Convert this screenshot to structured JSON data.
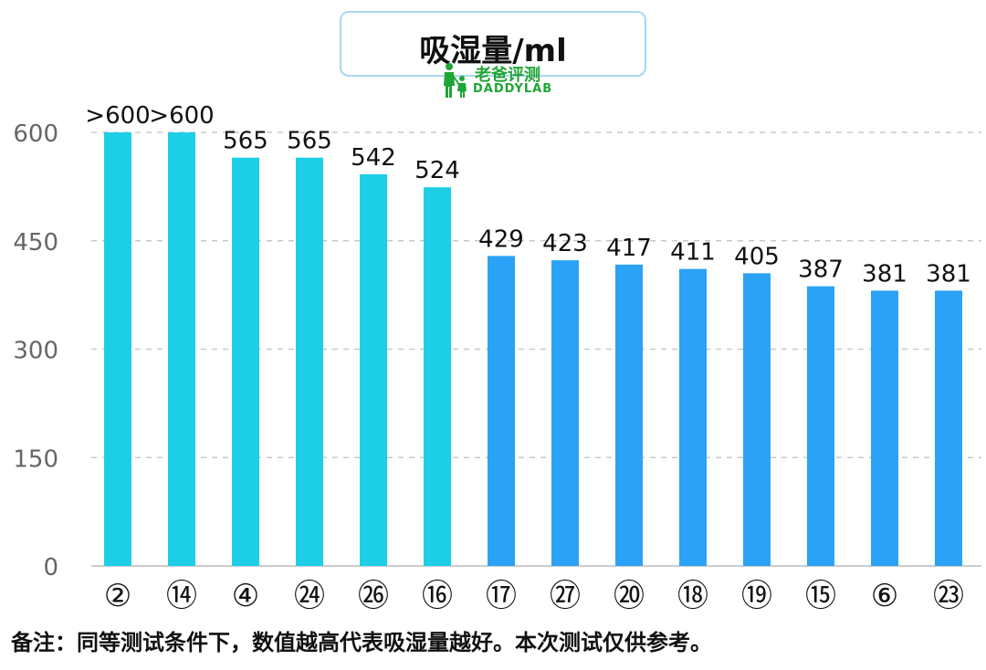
{
  "header": {
    "title": "吸湿量/ml",
    "logo_cn": "老爸评测",
    "logo_en": "DADDYLAB"
  },
  "footer": {
    "note": "备注：同等测试条件下，数值越高代表吸湿量越好。本次测试仅供参考。"
  },
  "colors": {
    "bar_top_group": "#1ccfe6",
    "bar_bottom_group": "#2ba2f5",
    "grid": "#c8c8c8",
    "axis_text": "#666666",
    "label_text": "#111111",
    "logo_green": "#1fa535"
  },
  "chart_data": {
    "type": "bar",
    "title": "吸湿量/ml",
    "xlabel": "",
    "ylabel": "",
    "ylim": [
      0,
      600
    ],
    "yticks": [
      0,
      150,
      300,
      450,
      600
    ],
    "grid": true,
    "categories": [
      "②",
      "⑭",
      "④",
      "㉔",
      "㉖",
      "⑯",
      "⑰",
      "㉗",
      "⑳",
      "⑱",
      "⑲",
      "⑮",
      "⑥",
      "㉓"
    ],
    "values": [
      600,
      600,
      565,
      565,
      542,
      524,
      429,
      423,
      417,
      411,
      405,
      387,
      381,
      381
    ],
    "value_labels": [
      ">600",
      ">600",
      "565",
      "565",
      "542",
      "524",
      "429",
      "423",
      "417",
      "411",
      "405",
      "387",
      "381",
      "381"
    ],
    "groups": [
      "top",
      "top",
      "top",
      "top",
      "top",
      "top",
      "bottom",
      "bottom",
      "bottom",
      "bottom",
      "bottom",
      "bottom",
      "bottom",
      "bottom"
    ]
  }
}
